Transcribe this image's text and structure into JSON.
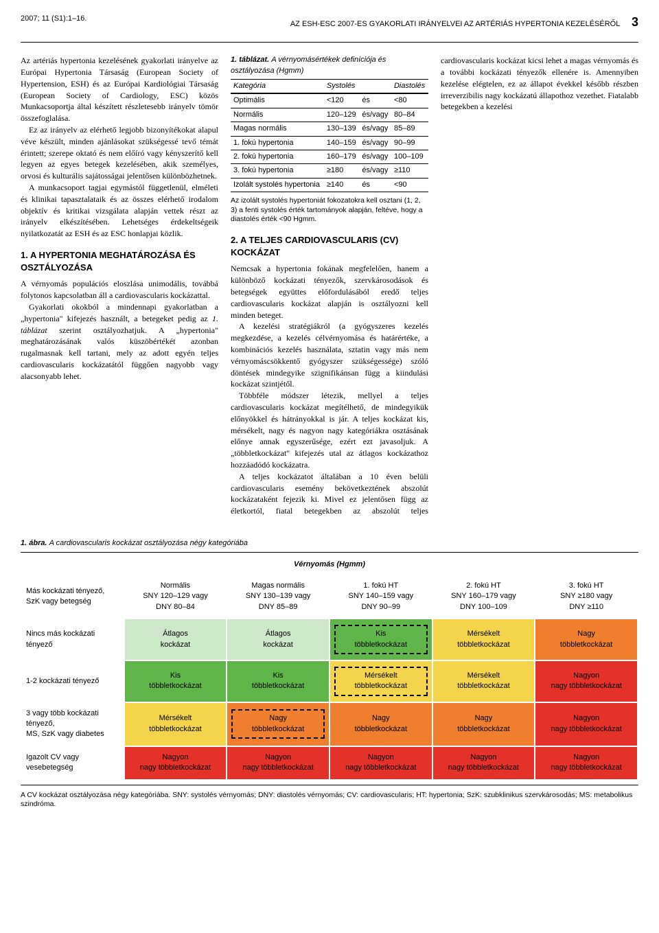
{
  "header": {
    "left": "2007; 11 (S1):1–16.",
    "right": "AZ ESH-ESC 2007-ES GYAKORLATI IRÁNYELVEI AZ ARTÉRIÁS HYPERTONIA KEZELÉSÉRŐL",
    "page": "3"
  },
  "text": {
    "p1": "Az artériás hypertonia kezelésének gyakorlati irányelve az Európai Hypertonia Társaság (European Society of Hypertension, ESH) és az Európai Kardiológiai Társaság (European Society of Cardiology, ESC) közös Munkacsoportja által készített részletesebb irányelv tömör összefoglalása.",
    "p2": "Ez az irányelv az elérhető legjobb bizonyítékokat alapul véve készült, minden ajánlásokat szükségessé tevő témát érintett; szerepe oktató és nem előíró vagy kényszerítő kell legyen az egyes betegek kezelésében, akik személyes, orvosi és kulturális sajátosságai jelentősen különbözhetnek.",
    "p3": "A munkacsoport tagjai egymástól függetlenül, elméleti és klinikai tapasztalataik és az összes elérhető irodalom objektív és kritikai vizsgálata alapján vettek részt az irányelv elkészítésében. Lehetséges érdekeltségeik nyilatkozatát az ESH és az ESC honlapjai közlik.",
    "h1": "1. A HYPERTONIA MEGHATÁROZÁSA ÉS OSZTÁLYOZÁSA",
    "p4": "A vérnyomás populációs eloszlása unimodális, továbbá folytonos kapcsolatban áll a cardiovascularis kockázattal.",
    "p5a": "Gyakorlati okokból a mindennapi gyakorlatban a „hypertonia\" kifejezés használt, a betegeket pedig az ",
    "p5b": " szerint osztályozhatjuk. A „hypertonia\" meghatározásának valós küszöbértékét azonban rugalmasnak kell tartani, mely az adott egyén teljes cardiovascularis kockázatától függően nagyobb vagy alacsonyabb lehet.",
    "p5it": "1. táblázat",
    "h2": "2. A TELJES CARDIOVASCULARIS (CV) KOCKÁZAT",
    "p6": "Nemcsak a hypertonia fokának megfelelően, hanem a különböző kockázati tényezők, szervkárosodások és betegségek együttes előfordulásából eredő teljes cardiovascularis kockázat alapján is osztályozni kell minden beteget.",
    "p7": "A kezelési stratégiákról (a gyógyszeres kezelés megkezdése, a kezelés célvérnyomása és határértéke, a kombinációs kezelés használata, sztatin vagy más nem vérnyomáscsökkentő gyógyszer szükségessége) szóló döntések mindegyike szignifikánsan függ a kiindulási kockázat szintjétől.",
    "p8": "Többféle módszer létezik, mellyel a teljes cardiovascularis kockázat megítélhető, de mindegyikük előnyökkel és hátrányokkal is jár. A teljes kockázat kis, mérsékelt, nagy és nagyon nagy kategóriákra osztásának előnye annak egyszerűsége, ezért ezt javasoljuk. A „többletkockázat\" kifejezés utal az átlagos kockázathoz hozzáadódó kockázatra.",
    "p9": "A teljes kockázatot általában a 10 éven belüli cardiovascularis esemény bekövetkeztének abszolút kockázataként fejezik ki. Mivel ez jelentősen függ az életkortól, fiatal betegekben az abszolút teljes cardiovascularis kockázat kicsi lehet a magas vérnyomás és a további kockázati tényezők ellenére is. Amennyiben kezelése elégtelen, ez az állapot évekkel később részben irreverzibilis nagy kockázatú állapothoz vezethet. Fiatalabb betegekben a kezelési"
  },
  "table1": {
    "caption_prefix": "1. táblázat.",
    "caption": "A vérnyomásértékek definíciója és osztályozása (Hgmm)",
    "headers": [
      "Kategória",
      "Systolés",
      "",
      "Diastolés"
    ],
    "rows": [
      [
        "Optimális",
        "<120",
        "és",
        "<80"
      ],
      [
        "Normális",
        "120–129",
        "és/vagy",
        "80–84"
      ],
      [
        "Magas normális",
        "130–139",
        "és/vagy",
        "85–89"
      ],
      [
        "1. fokú hypertonia",
        "140–159",
        "és/vagy",
        "90–99"
      ],
      [
        "2. fokú hypertonia",
        "160–179",
        "és/vagy",
        "100–109"
      ],
      [
        "3. fokú hypertonia",
        "≥180",
        "és/vagy",
        "≥110"
      ],
      [
        "Izolált systolés hypertonia",
        "≥140",
        "és",
        "<90"
      ]
    ],
    "footnote": "Az izolált systolés hypertoniát fokozatokra kell osztani (1, 2, 3) a fenti systolés érték tartományok alapján, feltéve, hogy a diastolés érték <90 Hgmm."
  },
  "figure1": {
    "caption_prefix": "1. ábra.",
    "caption": "A cardiovascularis kockázat osztályozása négy kategóriába",
    "bp_header": "Vérnyomás (Hgmm)",
    "col_headers": [
      [
        "Normális",
        "SNY 120–129 vagy",
        "DNY 80–84"
      ],
      [
        "Magas normális",
        "SNY 130–139 vagy",
        "DNY 85–89"
      ],
      [
        "1. fokú HT",
        "SNY 140–159 vagy",
        "DNY 90–99"
      ],
      [
        "2. fokú HT",
        "SNY 160–179 vagy",
        "DNY 100–109"
      ],
      [
        "3. fokú HT",
        "SNY ≥180 vagy",
        "DNY ≥110"
      ]
    ],
    "row_headers": [
      "Nincs más kockázati tényező",
      "1-2 kockázati tényező",
      "3 vagy több kockázati tényező, MS, SzK vagy diabetes",
      "Igazolt CV vagy vesebetegség"
    ],
    "leftcol_header": "Más kockázati tényező, SzK vagy betegség",
    "cells": [
      [
        {
          "label": "Átlagos kockázat",
          "bg": "#cde8c9",
          "dashed": false
        },
        {
          "label": "Átlagos kockázat",
          "bg": "#cde8c9",
          "dashed": false
        },
        {
          "label": "Kis többletkockázat",
          "bg": "#5fb54a",
          "dashed": true
        },
        {
          "label": "Mérsékelt többletkockázat",
          "bg": "#f3d44a",
          "dashed": false
        },
        {
          "label": "Nagy többletkockázat",
          "bg": "#ef7f2e",
          "dashed": false
        }
      ],
      [
        {
          "label": "Kis többletkockázat",
          "bg": "#5fb54a",
          "dashed": false
        },
        {
          "label": "Kis többletkockázat",
          "bg": "#5fb54a",
          "dashed": false
        },
        {
          "label": "Mérsékelt többletkockázat",
          "bg": "#f3d44a",
          "dashed": true
        },
        {
          "label": "Mérsékelt többletkockázat",
          "bg": "#f3d44a",
          "dashed": false
        },
        {
          "label": "Nagyon nagy többletkockázat",
          "bg": "#e4322b",
          "dashed": false
        }
      ],
      [
        {
          "label": "Mérsékelt többletkockázat",
          "bg": "#f3d44a",
          "dashed": false
        },
        {
          "label": "Nagy többletkockázat",
          "bg": "#ef7f2e",
          "dashed": true
        },
        {
          "label": "Nagy többletkockázat",
          "bg": "#ef7f2e",
          "dashed": false
        },
        {
          "label": "Nagy többletkockázat",
          "bg": "#ef7f2e",
          "dashed": false
        },
        {
          "label": "Nagyon nagy többletkockázat",
          "bg": "#e4322b",
          "dashed": false
        }
      ],
      [
        {
          "label": "Nagyon nagy többletkockázat",
          "bg": "#e4322b",
          "dashed": false
        },
        {
          "label": "Nagyon nagy többletkockázat",
          "bg": "#e4322b",
          "dashed": false
        },
        {
          "label": "Nagyon nagy többletkockázat",
          "bg": "#e4322b",
          "dashed": false
        },
        {
          "label": "Nagyon nagy többletkockázat",
          "bg": "#e4322b",
          "dashed": false
        },
        {
          "label": "Nagyon nagy többletkockázat",
          "bg": "#e4322b",
          "dashed": false
        }
      ]
    ],
    "footnote": "A CV kockázat osztályozása négy kategóriába. SNY: systolés vérnyomás; DNY: diastolés vérnyomás; CV: cardiovascularis; HT: hypertonia; SzK: szubklinikus szervkárosodás; MS: metabolikus szindróma."
  }
}
